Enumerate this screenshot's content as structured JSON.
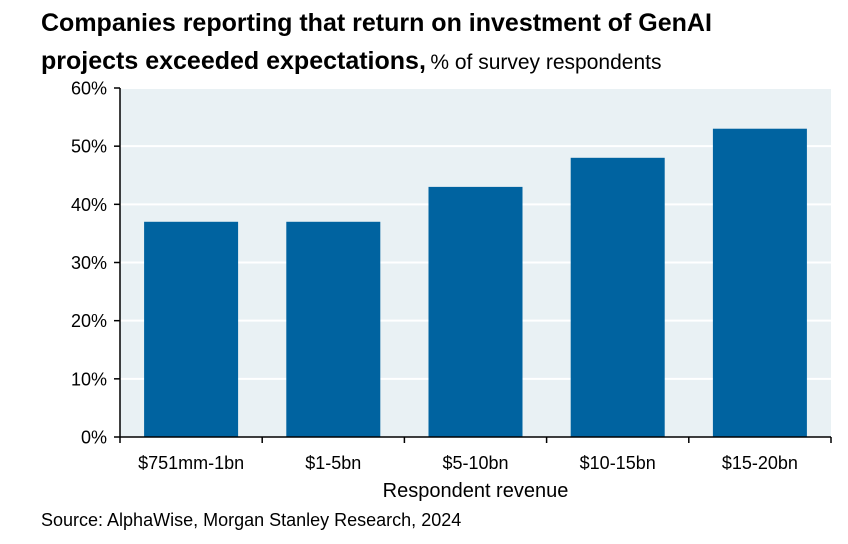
{
  "title": {
    "main_line1": "Companies reporting that return on investment of GenAI",
    "main_line2": "projects exceeded expectations,",
    "subtitle": "% of survey respondents"
  },
  "source": "Source: AlphaWise, Morgan Stanley Research, 2024",
  "colors": {
    "bar": "#0063a0",
    "plot_bg": "#e9f1f4",
    "grid": "#ffffff",
    "axis": "#000000"
  },
  "chart_data": {
    "type": "bar",
    "title": "Companies reporting that return on investment of GenAI projects exceeded expectations",
    "subtitle": "% of survey respondents",
    "categories": [
      "$751mm-1bn",
      "$1-5bn",
      "$5-10bn",
      "$10-15bn",
      "$15-20bn"
    ],
    "values": [
      37,
      37,
      43,
      48,
      53
    ],
    "xlabel": "Respondent revenue",
    "ylabel": "",
    "ylim": [
      0,
      60
    ],
    "yticks": [
      0,
      10,
      20,
      30,
      40,
      50,
      60
    ],
    "ytick_labels": [
      "0%",
      "10%",
      "20%",
      "30%",
      "40%",
      "50%",
      "60%"
    ],
    "grid": true
  }
}
